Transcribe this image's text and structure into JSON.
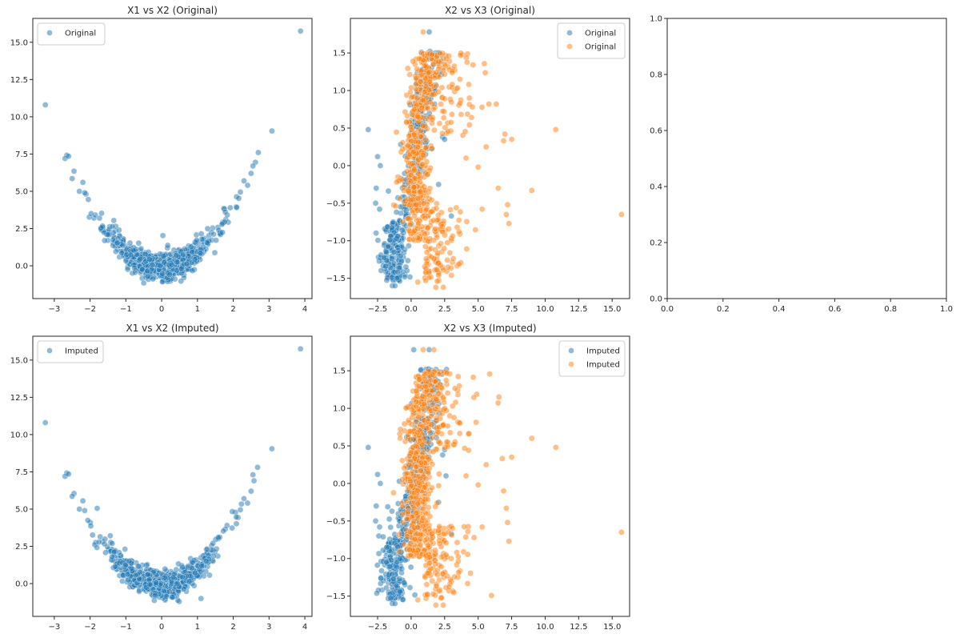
{
  "figure": {
    "background": "#ffffff",
    "layout": "2x3 grid of subplots"
  },
  "colors": {
    "blue": "#1f77b4",
    "orange": "#ff7f0e",
    "axis": "#262626",
    "legend_border": "#cccccc"
  },
  "chart_data": [
    {
      "type": "scatter",
      "title": "X1 vs X2 (Original)",
      "xlabel": "",
      "ylabel": "",
      "xlim": [
        -3.6,
        4.2
      ],
      "ylim": [
        -2.2,
        16.6
      ],
      "xticks": [
        -3,
        -2,
        -1,
        0,
        1,
        2,
        3,
        4
      ],
      "xtick_labels": [
        "−3",
        "−2",
        "−1",
        "0",
        "1",
        "2",
        "3",
        "4"
      ],
      "yticks": [
        0.0,
        2.5,
        5.0,
        7.5,
        10.0,
        12.5,
        15.0
      ],
      "ytick_labels": [
        "0.0",
        "2.5",
        "5.0",
        "7.5",
        "10.0",
        "12.5",
        "15.0"
      ],
      "legend": {
        "position": "upper-left",
        "entries": [
          {
            "label": "Original",
            "color": "#1f77b4"
          }
        ]
      },
      "series": [
        {
          "name": "Original",
          "color": "#1f77b4",
          "generator": "parabola",
          "seed": 11,
          "n": 700,
          "points": [
            [
              -3.25,
              10.8
            ],
            [
              3.88,
              15.75
            ],
            [
              3.08,
              9.05
            ],
            [
              -2.65,
              7.42
            ],
            [
              -2.7,
              7.2
            ],
            [
              -2.6,
              7.35
            ],
            [
              2.7,
              7.6
            ],
            [
              2.62,
              6.95
            ],
            [
              2.55,
              6.7
            ],
            [
              2.5,
              6.2
            ],
            [
              2.3,
              5.7
            ],
            [
              -2.45,
              6.35
            ],
            [
              -2.5,
              5.85
            ],
            [
              -2.2,
              5.6
            ],
            [
              -2.3,
              5.0
            ],
            [
              -2.15,
              4.9
            ],
            [
              -2.05,
              4.45
            ],
            [
              2.2,
              4.95
            ],
            [
              2.4,
              5.4
            ]
          ]
        }
      ]
    },
    {
      "type": "scatter",
      "title": "X2 vs X3 (Original)",
      "xlabel": "",
      "ylabel": "",
      "xlim": [
        -4.53,
        16.3
      ],
      "ylim": [
        -1.77,
        1.96
      ],
      "xticks": [
        -2.5,
        0.0,
        2.5,
        5.0,
        7.5,
        10.0,
        12.5,
        15.0
      ],
      "xtick_labels": [
        "−2.5",
        "0.0",
        "2.5",
        "5.0",
        "7.5",
        "10.0",
        "12.5",
        "15.0"
      ],
      "yticks": [
        -1.5,
        -1.0,
        -0.5,
        0.0,
        0.5,
        1.0,
        1.5
      ],
      "ytick_labels": [
        "−1.5",
        "−1.0",
        "−0.5",
        "0.0",
        "0.5",
        "1.0",
        "1.5"
      ],
      "legend": {
        "position": "upper-right",
        "entries": [
          {
            "label": "Original",
            "color": "#1f77b4"
          },
          {
            "label": "Original",
            "color": "#ff7f0e"
          }
        ]
      },
      "series": [
        {
          "name": "Original",
          "color": "#1f77b4",
          "generator": "blue_band",
          "seed": 21,
          "n": 420,
          "points": [
            [
              -3.2,
              0.48
            ],
            [
              1.35,
              1.78
            ],
            [
              -2.5,
              0.12
            ],
            [
              -2.3,
              0.0
            ],
            [
              -2.6,
              -0.3
            ],
            [
              -2.65,
              -0.5
            ],
            [
              -2.35,
              -0.58
            ],
            [
              2.35,
              0.38
            ],
            [
              2.5,
              0.35
            ],
            [
              3.0,
              -0.67
            ],
            [
              2.05,
              -0.25
            ],
            [
              -1.4,
              -1.6
            ],
            [
              -1.2,
              -1.6
            ]
          ]
        },
        {
          "name": "Original",
          "color": "#ff7f0e",
          "generator": "orange_band",
          "seed": 33,
          "n": 620,
          "points": [
            [
              0.9,
              1.78
            ],
            [
              10.8,
              0.48
            ],
            [
              15.7,
              -0.65
            ],
            [
              9.0,
              -0.33
            ],
            [
              7.5,
              0.35
            ],
            [
              6.9,
              0.33
            ],
            [
              7.0,
              0.42
            ],
            [
              6.35,
              0.82
            ],
            [
              5.8,
              0.82
            ],
            [
              7.2,
              -0.52
            ],
            [
              7.3,
              -0.77
            ],
            [
              7.1,
              -0.65
            ],
            [
              5.3,
              -0.58
            ],
            [
              6.5,
              -0.3
            ],
            [
              5.0,
              -0.02
            ],
            [
              5.6,
              0.25
            ],
            [
              4.1,
              0.1
            ],
            [
              1.85,
              -1.62
            ],
            [
              2.4,
              -1.62
            ],
            [
              0.5,
              -1.55
            ]
          ]
        }
      ]
    },
    {
      "type": "scatter",
      "title": "",
      "xlabel": "",
      "ylabel": "",
      "xlim": [
        0.0,
        1.0
      ],
      "ylim": [
        0.0,
        1.0
      ],
      "xticks": [
        0.0,
        0.2,
        0.4,
        0.6,
        0.8,
        1.0
      ],
      "xtick_labels": [
        "0.0",
        "0.2",
        "0.4",
        "0.6",
        "0.8",
        "1.0"
      ],
      "yticks": [
        0.0,
        0.2,
        0.4,
        0.6,
        0.8,
        1.0
      ],
      "ytick_labels": [
        "0.0",
        "0.2",
        "0.4",
        "0.6",
        "0.8",
        "1.0"
      ],
      "legend": null,
      "series": []
    },
    {
      "type": "scatter",
      "title": "X1 vs X2 (Imputed)",
      "xlabel": "",
      "ylabel": "",
      "xlim": [
        -3.6,
        4.2
      ],
      "ylim": [
        -2.2,
        16.6
      ],
      "xticks": [
        -3,
        -2,
        -1,
        0,
        1,
        2,
        3,
        4
      ],
      "xtick_labels": [
        "−3",
        "−2",
        "−1",
        "0",
        "1",
        "2",
        "3",
        "4"
      ],
      "yticks": [
        0.0,
        2.5,
        5.0,
        7.5,
        10.0,
        12.5,
        15.0
      ],
      "ytick_labels": [
        "0.0",
        "2.5",
        "5.0",
        "7.5",
        "10.0",
        "12.5",
        "15.0"
      ],
      "legend": {
        "position": "upper-left",
        "entries": [
          {
            "label": "Imputed",
            "color": "#1f77b4"
          }
        ]
      },
      "series": [
        {
          "name": "Imputed",
          "color": "#1f77b4",
          "generator": "parabola",
          "seed": 12,
          "n": 760,
          "points": [
            [
              -3.25,
              10.8
            ],
            [
              3.88,
              15.75
            ],
            [
              3.08,
              9.05
            ],
            [
              -2.65,
              7.42
            ],
            [
              -2.7,
              7.2
            ],
            [
              -2.6,
              7.35
            ],
            [
              2.68,
              7.8
            ],
            [
              2.55,
              7.3
            ],
            [
              2.58,
              6.9
            ],
            [
              2.5,
              6.2
            ],
            [
              2.3,
              5.7
            ],
            [
              -2.45,
              6.05
            ],
            [
              -2.5,
              5.85
            ],
            [
              -2.2,
              5.55
            ],
            [
              -2.3,
              5.0
            ],
            [
              -2.15,
              4.9
            ],
            [
              -1.8,
              5.05
            ],
            [
              1.1,
              -1.0
            ],
            [
              2.2,
              4.95
            ],
            [
              2.4,
              5.4
            ]
          ]
        }
      ]
    },
    {
      "type": "scatter",
      "title": "X2 vs X3 (Imputed)",
      "xlabel": "",
      "ylabel": "",
      "xlim": [
        -4.53,
        16.3
      ],
      "ylim": [
        -1.77,
        1.96
      ],
      "xticks": [
        -2.5,
        0.0,
        2.5,
        5.0,
        7.5,
        10.0,
        12.5,
        15.0
      ],
      "xtick_labels": [
        "−2.5",
        "0.0",
        "2.5",
        "5.0",
        "7.5",
        "10.0",
        "12.5",
        "15.0"
      ],
      "yticks": [
        -1.5,
        -1.0,
        -0.5,
        0.0,
        0.5,
        1.0,
        1.5
      ],
      "ytick_labels": [
        "−1.5",
        "−1.0",
        "−0.5",
        "0.0",
        "0.5",
        "1.0",
        "1.5"
      ],
      "legend": {
        "position": "upper-right",
        "entries": [
          {
            "label": "Imputed",
            "color": "#1f77b4"
          },
          {
            "label": "Imputed",
            "color": "#ff7f0e"
          }
        ]
      },
      "series": [
        {
          "name": "Imputed",
          "color": "#1f77b4",
          "generator": "blue_band",
          "seed": 22,
          "n": 440,
          "points": [
            [
              -3.2,
              0.48
            ],
            [
              1.35,
              1.78
            ],
            [
              0.2,
              1.78
            ],
            [
              -2.5,
              0.12
            ],
            [
              -2.3,
              0.0
            ],
            [
              -2.6,
              -0.3
            ],
            [
              -2.65,
              -0.5
            ],
            [
              -2.35,
              -0.58
            ],
            [
              2.35,
              0.38
            ],
            [
              2.5,
              0.45
            ],
            [
              2.6,
              0.1
            ],
            [
              3.0,
              -0.67
            ],
            [
              2.05,
              -0.25
            ],
            [
              -1.4,
              -1.6
            ],
            [
              -1.2,
              -1.6
            ]
          ]
        },
        {
          "name": "Imputed",
          "color": "#ff7f0e",
          "generator": "orange_band",
          "seed": 34,
          "n": 680,
          "points": [
            [
              0.9,
              1.78
            ],
            [
              1.7,
              1.78
            ],
            [
              10.8,
              0.48
            ],
            [
              15.7,
              -0.65
            ],
            [
              9.0,
              0.6
            ],
            [
              7.5,
              0.35
            ],
            [
              6.8,
              0.33
            ],
            [
              5.6,
              0.25
            ],
            [
              7.2,
              -0.52
            ],
            [
              7.3,
              -0.77
            ],
            [
              7.1,
              -0.33
            ],
            [
              6.9,
              -0.1
            ],
            [
              5.3,
              -0.58
            ],
            [
              4.1,
              0.1
            ],
            [
              5.0,
              -0.02
            ],
            [
              1.85,
              -1.62
            ],
            [
              2.4,
              -1.62
            ],
            [
              0.5,
              -1.55
            ]
          ]
        }
      ]
    }
  ]
}
